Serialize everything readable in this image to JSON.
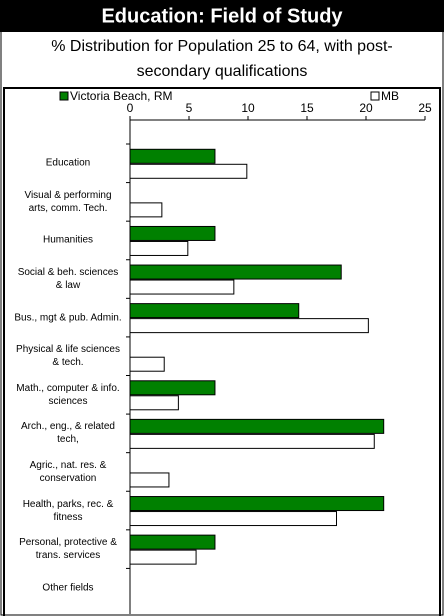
{
  "chart_data": {
    "type": "bar",
    "orientation": "horizontal",
    "title": "Education: Field of Study",
    "subtitle": "% Distribution for Population 25 to 64, with post-secondary qualifications",
    "categories": [
      "Education",
      "Visual & performing arts, comm. Tech.",
      "Humanities",
      "Social & beh. sciences & law",
      "Bus., mgt & pub. Admin.",
      "Physical & life sciences & tech.",
      "Math., computer & info. sciences",
      "Arch., eng., & related tech,",
      "Agric., nat. res. & conservation",
      "Health, parks, rec. & fitness",
      "Personal, protective & trans. services",
      "Other fields"
    ],
    "series": [
      {
        "name": "Victoria Beach, RM",
        "color": "#008000",
        "values": [
          7.2,
          0,
          7.2,
          17.9,
          14.3,
          0,
          7.2,
          21.5,
          0,
          21.5,
          7.2,
          0
        ]
      },
      {
        "name": "MB",
        "color": "#ffffff",
        "values": [
          9.9,
          2.7,
          4.9,
          8.8,
          20.2,
          2.9,
          4.1,
          20.7,
          3.3,
          17.5,
          5.6,
          0
        ]
      }
    ],
    "xlim": [
      0,
      25
    ],
    "xticks": [
      0,
      5,
      10,
      15,
      20,
      25
    ]
  }
}
